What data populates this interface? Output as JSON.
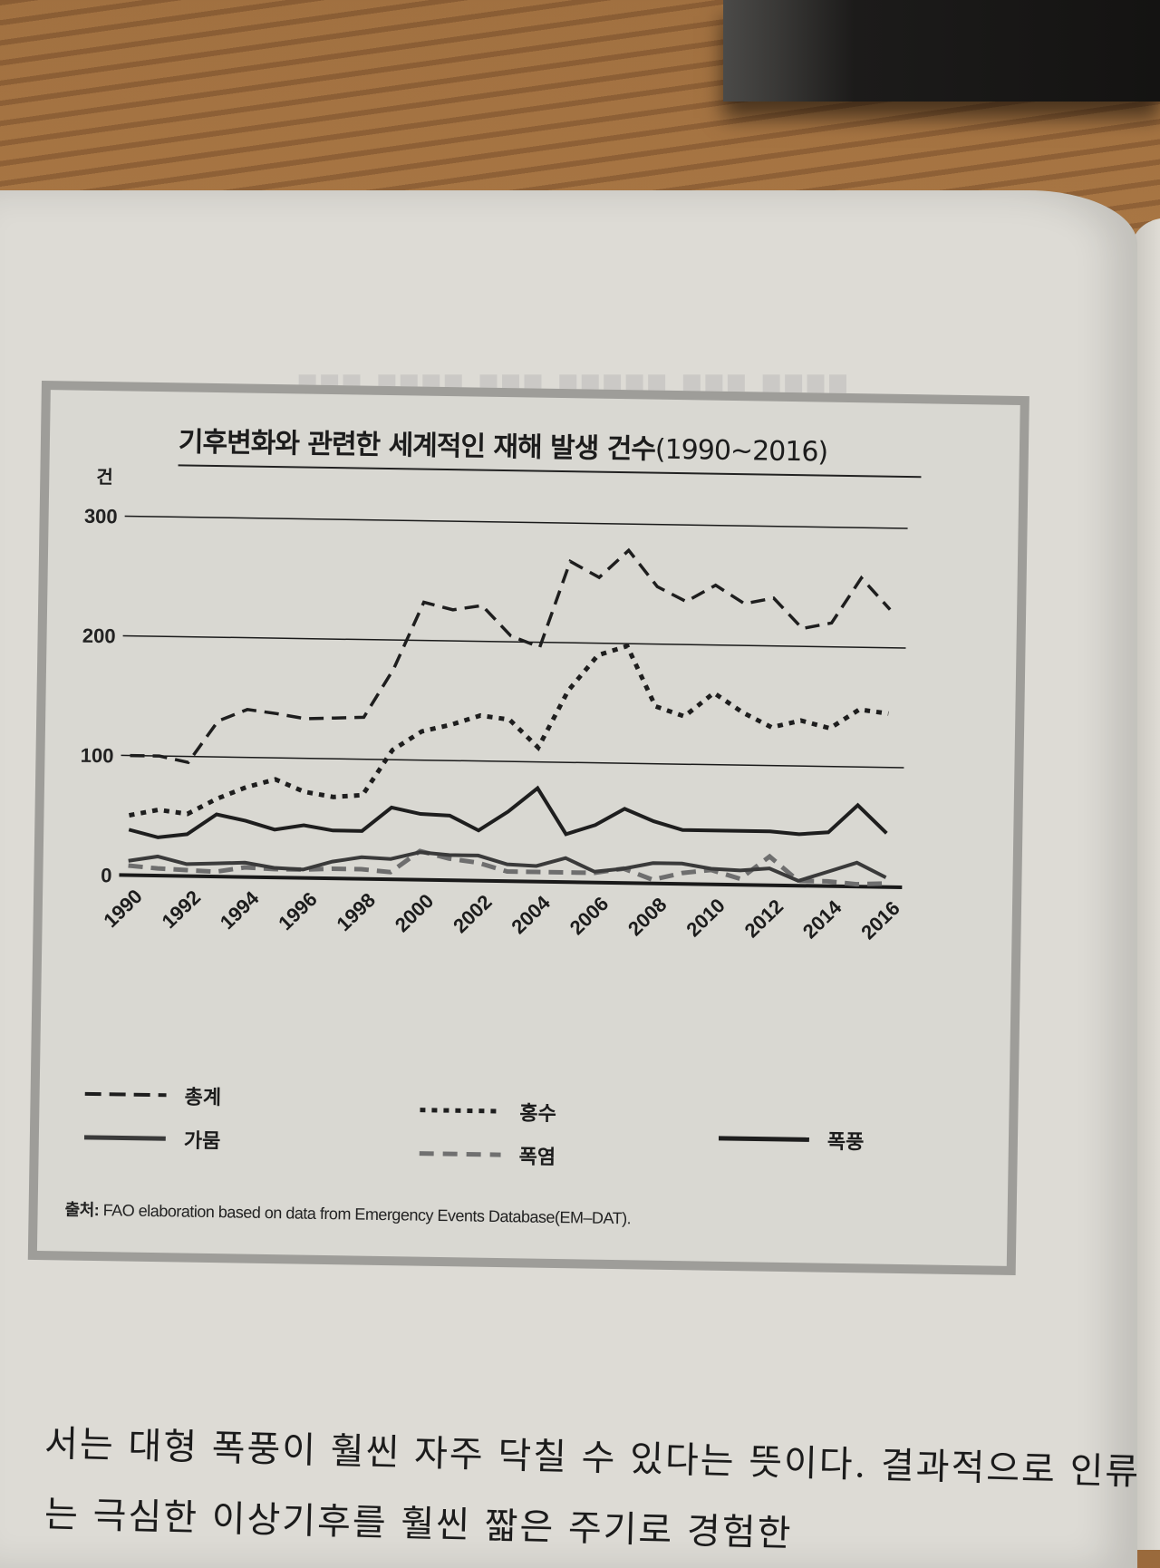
{
  "chart_data": {
    "type": "line",
    "title": "기후변화와 관련한 세계적인 재해 발생 건수",
    "title_years": "(1990~2016)",
    "ylabel": "건",
    "xlabel": "",
    "ylim": [
      0,
      300
    ],
    "yticks": [
      0,
      100,
      200,
      300
    ],
    "grid": true,
    "legend_position": "bottom",
    "x": [
      1990,
      1991,
      1992,
      1993,
      1994,
      1995,
      1996,
      1997,
      1998,
      1999,
      2000,
      2001,
      2002,
      2003,
      2004,
      2005,
      2006,
      2007,
      2008,
      2009,
      2010,
      2011,
      2012,
      2013,
      2014,
      2015,
      2016
    ],
    "xtick_labels": [
      "1990",
      "1992",
      "1994",
      "1996",
      "1998",
      "2000",
      "2002",
      "2004",
      "2006",
      "2008",
      "2010",
      "2012",
      "2014",
      "2016"
    ],
    "series": [
      {
        "name": "총계",
        "style": "dashed",
        "color": "#1e1e1e",
        "values": [
          100,
          100,
          95,
          130,
          140,
          137,
          133,
          134,
          135,
          176,
          232,
          226,
          230,
          205,
          196,
          268,
          255,
          278,
          248,
          236,
          250,
          235,
          240,
          215,
          220,
          258,
          232
        ]
      },
      {
        "name": "홍수",
        "style": "dotted",
        "color": "#1e1e1e",
        "values": [
          50,
          55,
          52,
          65,
          75,
          82,
          72,
          68,
          70,
          108,
          124,
          130,
          138,
          135,
          112,
          160,
          190,
          198,
          148,
          140,
          160,
          144,
          132,
          138,
          132,
          148,
          145
        ]
      },
      {
        "name": "폭풍",
        "style": "solid",
        "color": "#1e1e1e",
        "values": [
          38,
          32,
          35,
          52,
          47,
          40,
          44,
          40,
          40,
          60,
          55,
          54,
          42,
          58,
          78,
          40,
          48,
          62,
          52,
          45,
          45,
          45,
          45,
          43,
          45,
          68,
          45
        ]
      },
      {
        "name": "가뭄",
        "style": "solid",
        "color": "#3a3a3a",
        "values": [
          12,
          16,
          10,
          11,
          12,
          8,
          7,
          14,
          18,
          17,
          23,
          21,
          21,
          14,
          13,
          20,
          9,
          12,
          17,
          17,
          13,
          12,
          14,
          4,
          12,
          20,
          8
        ]
      },
      {
        "name": "폭염",
        "style": "dashed",
        "color": "#6e6e6e",
        "values": [
          8,
          6,
          5,
          4,
          8,
          7,
          7,
          8,
          8,
          6,
          24,
          18,
          15,
          8,
          8,
          8,
          8,
          12,
          3,
          9,
          12,
          5,
          24,
          4,
          4,
          2,
          3
        ]
      }
    ]
  },
  "legend": {
    "items": [
      {
        "label": "총계",
        "style": "dashed"
      },
      {
        "label": "홍수",
        "style": "dotted"
      },
      {
        "label": "폭풍",
        "style": "solid"
      },
      {
        "label": "가뭄",
        "style": "solid"
      },
      {
        "label": "폭염",
        "style": "dashed-gray"
      }
    ]
  },
  "source": {
    "label": "출처:",
    "text": " FAO elaboration based on data from Emergency Events Database(EM–DAT)."
  },
  "body_text": {
    "line1": "서는 대형 폭풍이 훨씬 자주 닥칠 수 있다는 뜻이다. 결과적으로 인류",
    "line2": "는 극심한 이상기후를 훨씬 짧은 주기로 경험한"
  }
}
